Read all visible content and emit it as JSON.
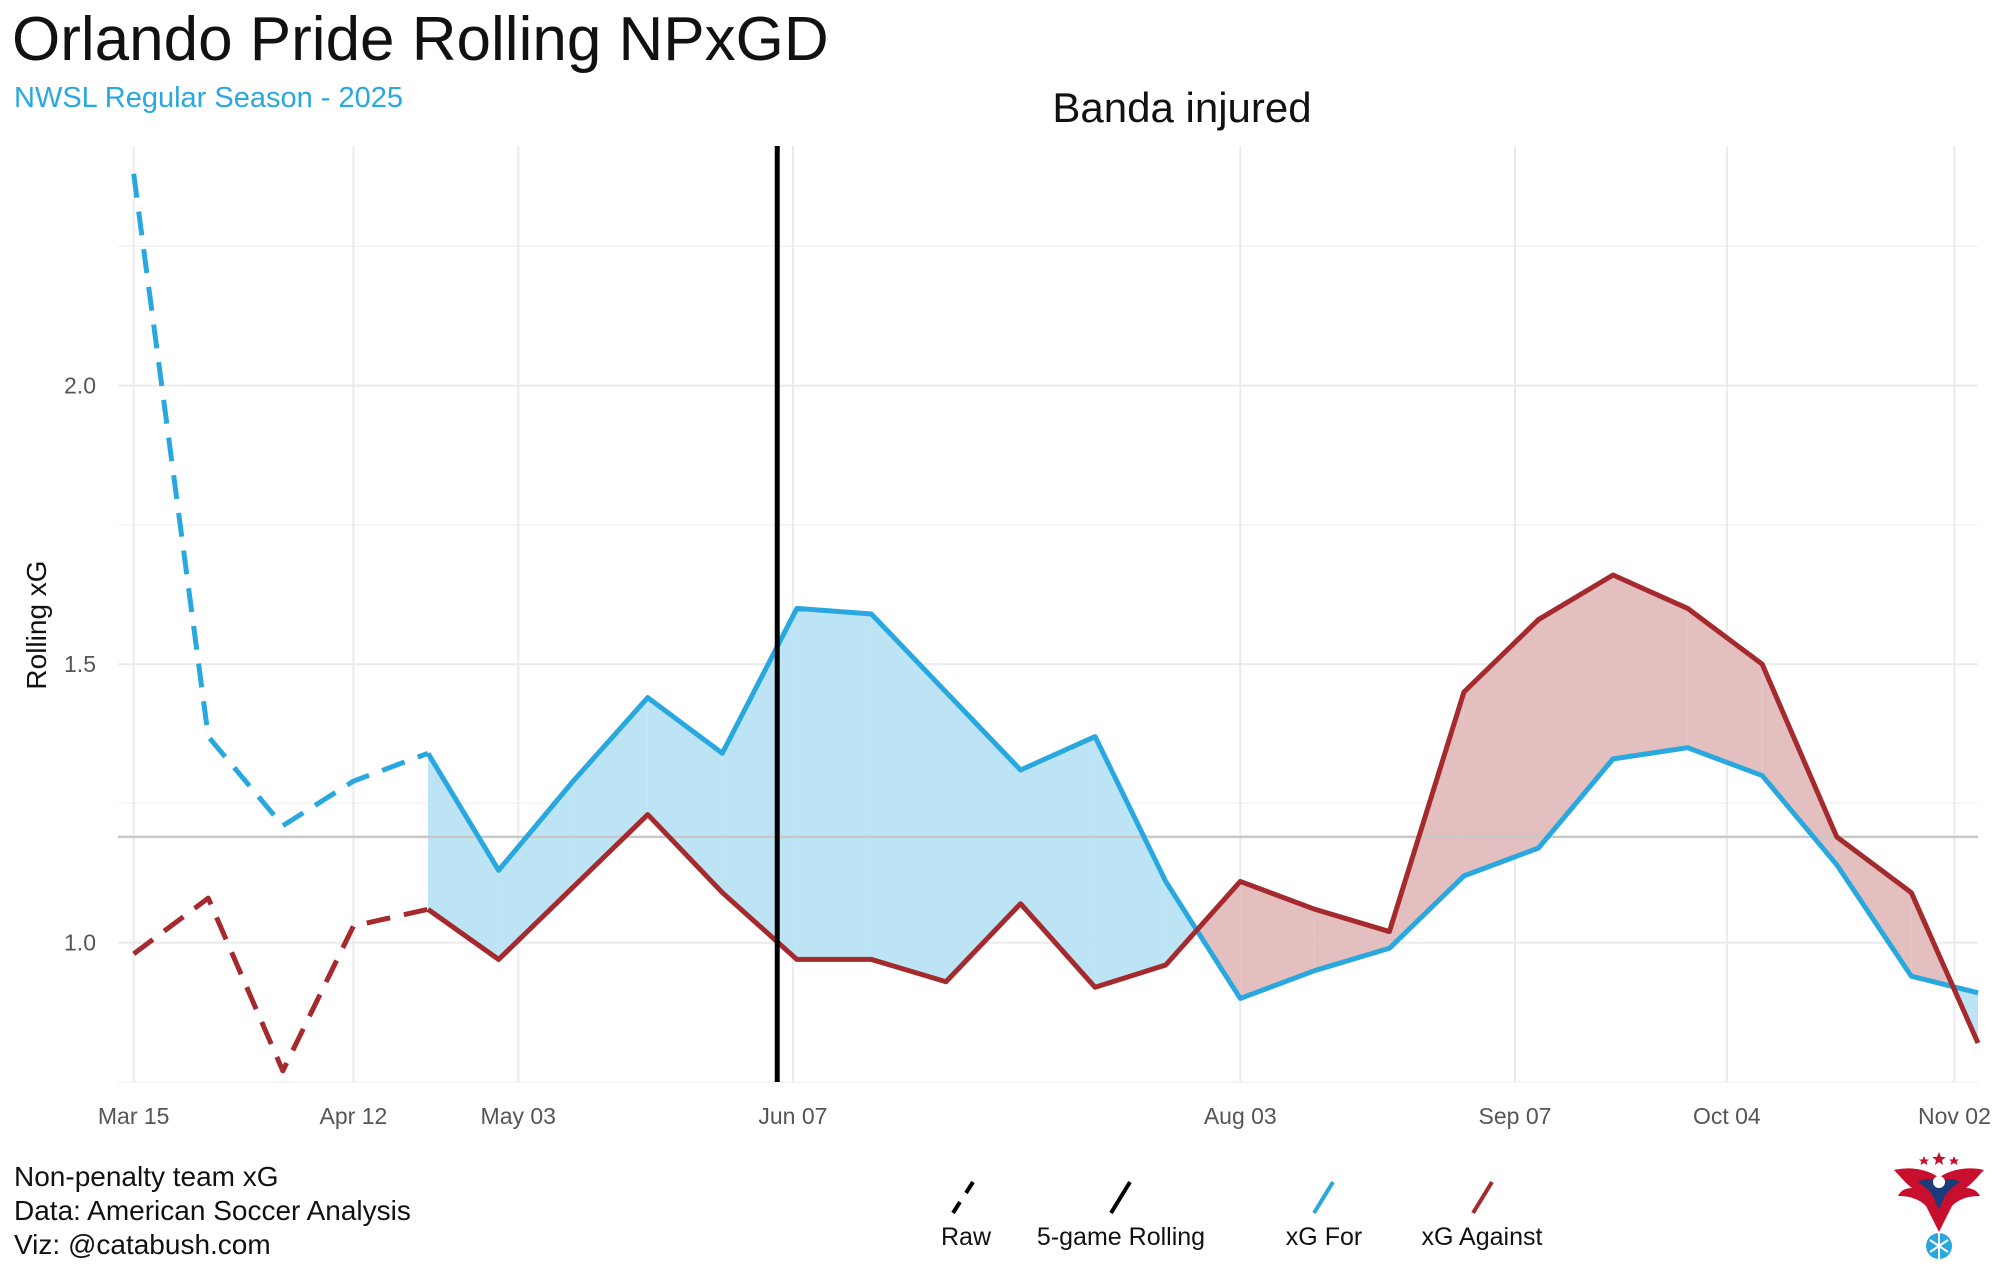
{
  "header": {
    "title": "Orlando Pride Rolling NPxGD",
    "subtitle": "NWSL Regular Season - 2025"
  },
  "caption": {
    "line1": "Non-penalty team xG",
    "line2": "Data: American Soccer Analysis",
    "line3": "Viz: @catabush.com"
  },
  "legend": {
    "raw_label": "Raw",
    "rolling_label": "5-game Rolling",
    "for_label": "xG For",
    "against_label": "xG Against"
  },
  "annotation": {
    "text": "Banda injured",
    "x": 82
  },
  "colors": {
    "xg_for": "#29a8e0",
    "xg_against": "#a52a2e",
    "for_fill": "#bde4f5",
    "against_fill": "#e4bfc0",
    "grid": "#ebebeb",
    "mean_line": "#c8c8c8"
  },
  "chart_data": {
    "type": "line",
    "title": "Orlando Pride Rolling NPxGD",
    "subtitle": "NWSL Regular Season - 2025",
    "xlabel": "",
    "ylabel": "Rolling xG",
    "x_unit": "days since Mar 15",
    "xlim": [
      -2,
      235
    ],
    "ylim": [
      0.75,
      2.43
    ],
    "x_ticks": [
      {
        "x": 0,
        "label": "Mar 15"
      },
      {
        "x": 28,
        "label": "Apr 12"
      },
      {
        "x": 49,
        "label": "May 03"
      },
      {
        "x": 84,
        "label": "Jun 07"
      },
      {
        "x": 141,
        "label": "Aug 03"
      },
      {
        "x": 176,
        "label": "Sep 07"
      },
      {
        "x": 203,
        "label": "Oct 04"
      },
      {
        "x": 232,
        "label": "Nov 02"
      }
    ],
    "y_ticks": [
      1.0,
      1.5,
      2.0
    ],
    "mean_line": 1.19,
    "raw_phase": {
      "x": [
        0,
        9.5,
        19,
        28,
        37.5
      ],
      "xg_for": [
        2.38,
        1.37,
        1.21,
        1.29,
        1.34
      ],
      "xg_against": [
        0.98,
        1.08,
        0.77,
        1.03,
        1.06
      ]
    },
    "series": [
      {
        "name": "xG For",
        "x": [
          37.5,
          46.5,
          56,
          65.5,
          75,
          84.5,
          94,
          103.5,
          113,
          122.5,
          131.5,
          141,
          150.5,
          160,
          169.5,
          179,
          188.5,
          198,
          207.5,
          217,
          226.5,
          235
        ],
        "values": [
          1.34,
          1.13,
          1.29,
          1.44,
          1.34,
          1.6,
          1.59,
          1.45,
          1.31,
          1.37,
          1.11,
          0.9,
          0.95,
          0.99,
          1.12,
          1.17,
          1.33,
          1.35,
          1.3,
          1.14,
          0.94,
          0.91
        ]
      },
      {
        "name": "xG Against",
        "x": [
          37.5,
          46.5,
          56,
          65.5,
          75,
          84.5,
          94,
          103.5,
          113,
          122.5,
          131.5,
          141,
          150.5,
          160,
          169.5,
          179,
          188.5,
          198,
          207.5,
          217,
          226.5,
          235
        ],
        "values": [
          1.06,
          0.97,
          1.1,
          1.23,
          1.09,
          0.97,
          0.97,
          0.93,
          1.07,
          0.92,
          0.96,
          1.11,
          1.06,
          1.02,
          1.45,
          1.58,
          1.66,
          1.6,
          1.5,
          1.19,
          1.09,
          0.82
        ]
      }
    ]
  }
}
